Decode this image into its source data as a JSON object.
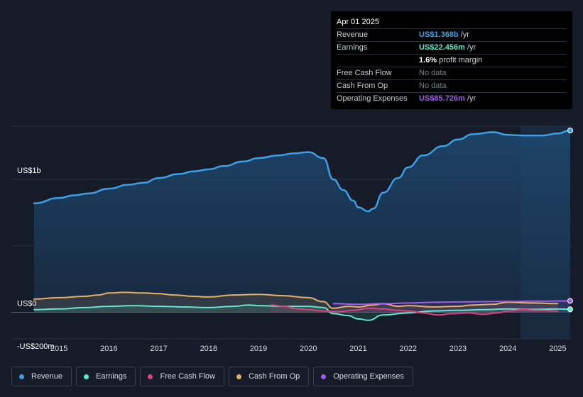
{
  "tooltip": {
    "date": "Apr 01 2025",
    "rows": [
      {
        "label": "Revenue",
        "value": "US$1.368b",
        "suffix": " /yr",
        "color": "#3ba0e8"
      },
      {
        "label": "Earnings",
        "value": "US$22.456m",
        "suffix": " /yr",
        "color": "#5ee8cc"
      },
      {
        "label": "",
        "value": "1.6%",
        "suffix": " profit margin",
        "color": "#ffffff"
      },
      {
        "label": "Free Cash Flow",
        "value": "No data",
        "suffix": "",
        "color": "#7b818a"
      },
      {
        "label": "Cash From Op",
        "value": "No data",
        "suffix": "",
        "color": "#7b818a"
      },
      {
        "label": "Operating Expenses",
        "value": "US$85.726m",
        "suffix": " /yr",
        "color": "#a25ee8"
      }
    ]
  },
  "legend": [
    {
      "label": "Revenue",
      "color": "#3ba0e8"
    },
    {
      "label": "Earnings",
      "color": "#5ee8cc"
    },
    {
      "label": "Free Cash Flow",
      "color": "#d9447c"
    },
    {
      "label": "Cash From Op",
      "color": "#e8b060"
    },
    {
      "label": "Operating Expenses",
      "color": "#a25ee8"
    }
  ],
  "chart_data": {
    "type": "area",
    "title": "",
    "y_tick_labels": [
      "US$1b",
      "US$0",
      "-US$200m"
    ],
    "x_tick_labels": [
      "2015",
      "2016",
      "2017",
      "2018",
      "2019",
      "2020",
      "2021",
      "2022",
      "2023",
      "2024",
      "2025"
    ],
    "ylim": [
      -200,
      1400
    ],
    "units": "US$m",
    "forecast_start": 2024.25,
    "series": [
      {
        "name": "Revenue",
        "color": "#3ba0e8",
        "x": [
          2014.5,
          2015,
          2015.3,
          2015.6,
          2016,
          2016.4,
          2016.7,
          2017,
          2017.4,
          2017.7,
          2018,
          2018.3,
          2018.7,
          2019,
          2019.4,
          2019.7,
          2020,
          2020.3,
          2020.5,
          2020.7,
          2020.9,
          2021,
          2021.2,
          2021.3,
          2021.5,
          2021.8,
          2022,
          2022.3,
          2022.7,
          2023,
          2023.3,
          2023.7,
          2024,
          2024.3,
          2024.7,
          2025,
          2025.25
        ],
        "y": [
          820,
          860,
          880,
          895,
          930,
          960,
          975,
          1010,
          1040,
          1060,
          1075,
          1100,
          1135,
          1160,
          1180,
          1195,
          1205,
          1160,
          1000,
          920,
          840,
          790,
          760,
          780,
          900,
          1010,
          1090,
          1180,
          1250,
          1300,
          1340,
          1355,
          1335,
          1330,
          1330,
          1345,
          1368
        ]
      },
      {
        "name": "Earnings",
        "color": "#5ee8cc",
        "x": [
          2014.5,
          2015,
          2015.5,
          2016,
          2016.5,
          2017,
          2017.5,
          2018,
          2018.5,
          2018.8,
          2019,
          2019.5,
          2020,
          2020.3,
          2020.5,
          2020.8,
          2021,
          2021.2,
          2021.5,
          2022,
          2022.5,
          2023,
          2023.5,
          2024,
          2024.5,
          2025,
          2025.25
        ],
        "y": [
          20,
          25,
          35,
          45,
          50,
          45,
          40,
          35,
          45,
          55,
          50,
          45,
          45,
          35,
          -10,
          -25,
          -50,
          -60,
          -20,
          -5,
          10,
          15,
          20,
          25,
          22,
          25,
          22.5
        ]
      },
      {
        "name": "Free Cash Flow",
        "color": "#d9447c",
        "x": [
          2019.25,
          2019.5,
          2019.8,
          2020,
          2020.3,
          2020.6,
          2020.9,
          2021.2,
          2021.5,
          2021.8,
          2022,
          2022.3,
          2022.6,
          2022.9,
          2023.2,
          2023.5,
          2023.8,
          2024,
          2024.3,
          2024.6,
          2025
        ],
        "y": [
          55,
          45,
          25,
          20,
          10,
          5,
          15,
          30,
          25,
          15,
          10,
          -5,
          -20,
          -10,
          -5,
          -15,
          -5,
          10,
          20,
          15,
          10
        ]
      },
      {
        "name": "Cash From Op",
        "color": "#e8b060",
        "x": [
          2014.5,
          2015,
          2015.5,
          2015.8,
          2016,
          2016.3,
          2016.7,
          2017,
          2017.3,
          2017.7,
          2018,
          2018.5,
          2019,
          2019.5,
          2020,
          2020.3,
          2020.5,
          2020.8,
          2021,
          2021.3,
          2021.5,
          2021.8,
          2022,
          2022.5,
          2023,
          2023.3,
          2023.7,
          2024,
          2024.5,
          2025
        ],
        "y": [
          100,
          110,
          120,
          130,
          145,
          150,
          145,
          140,
          130,
          120,
          115,
          130,
          135,
          125,
          110,
          80,
          30,
          45,
          40,
          55,
          65,
          45,
          50,
          40,
          45,
          55,
          60,
          75,
          70,
          65
        ]
      },
      {
        "name": "Operating Expenses",
        "color": "#a25ee8",
        "x": [
          2020.5,
          2021,
          2021.5,
          2022,
          2022.5,
          2023,
          2023.5,
          2024,
          2024.5,
          2025,
          2025.25
        ],
        "y": [
          65,
          60,
          65,
          70,
          75,
          78,
          80,
          82,
          84,
          85,
          85.7
        ]
      }
    ]
  }
}
